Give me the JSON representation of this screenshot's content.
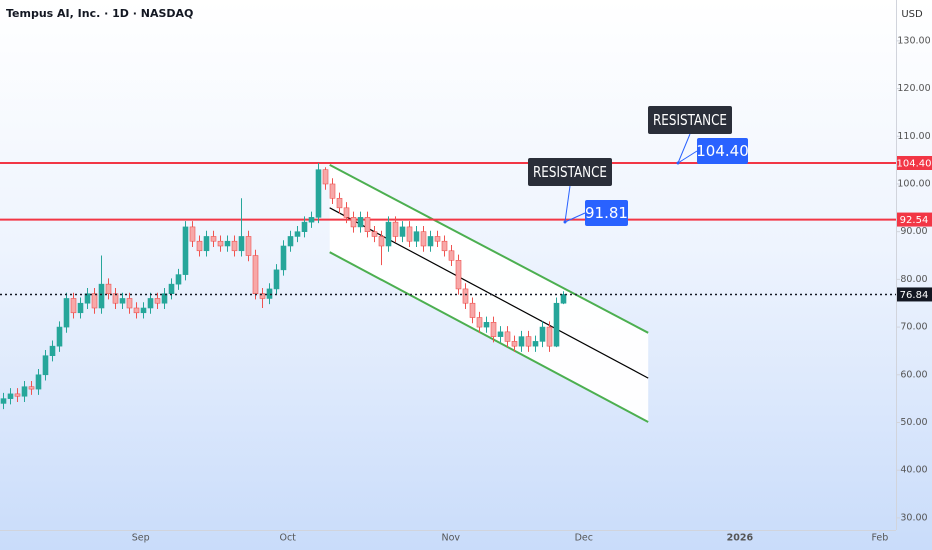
{
  "chart_data": {
    "type": "candlestick",
    "title": "Tempus AI, Inc. · 1D · NASDAQ",
    "currency": "USD",
    "up_color": "#26a69a",
    "down_color": "#ef5350",
    "grid": false,
    "xlim": [
      -0.5,
      127.5
    ],
    "xticks": [
      {
        "value": 19.6,
        "label": "Sep"
      },
      {
        "value": 40.6,
        "label": "Oct"
      },
      {
        "value": 63.9,
        "label": "Nov"
      },
      {
        "value": 82.9,
        "label": "Dec"
      },
      {
        "value": 105.2,
        "label": "2026"
      },
      {
        "value": 125.2,
        "label": "Feb"
      }
    ],
    "ylim": [
      27.46,
      138.57
    ],
    "yticks": [
      {
        "value": 30,
        "label": "30.00"
      },
      {
        "value": 40,
        "label": "40.00"
      },
      {
        "value": 50,
        "label": "50.00"
      },
      {
        "value": 60,
        "label": "60.00"
      },
      {
        "value": 70,
        "label": "70.00"
      },
      {
        "value": 80,
        "label": "80.00"
      },
      {
        "value": 90,
        "label": "90.00"
      },
      {
        "value": 100,
        "label": "100.00"
      },
      {
        "value": 110,
        "label": "110.00"
      },
      {
        "value": 120,
        "label": "120.00"
      },
      {
        "value": 130,
        "label": "130.00"
      }
    ],
    "open": [
      54,
      55,
      56,
      55.5,
      57.5,
      57,
      60,
      64,
      66,
      70,
      76,
      73,
      75,
      77,
      74,
      79,
      77,
      75,
      76,
      74,
      73,
      74,
      76,
      75,
      77,
      79,
      81,
      91,
      88,
      86,
      89,
      88,
      87,
      88,
      86,
      89,
      85,
      77,
      76,
      78,
      82,
      87,
      89,
      90,
      92,
      93,
      103,
      100,
      97,
      95,
      93,
      91,
      93,
      90,
      89,
      87,
      92,
      89,
      91,
      88,
      90,
      87,
      89,
      88,
      86,
      84,
      78,
      75,
      72,
      70,
      71,
      68,
      69,
      67,
      66,
      68,
      66,
      67,
      70,
      66,
      75
    ],
    "high": [
      56.2,
      57.2,
      57.2,
      58.7,
      58.7,
      61.2,
      65.2,
      67.2,
      71.2,
      77.2,
      77.2,
      76.2,
      78.2,
      78.2,
      85,
      80.2,
      78.2,
      77.2,
      77.2,
      75.2,
      75.2,
      77.2,
      77.2,
      78.2,
      80.2,
      82.2,
      92.2,
      92.2,
      89.2,
      90.2,
      90.2,
      89.2,
      89.2,
      89.2,
      97,
      90.2,
      86.2,
      78.2,
      79.2,
      83.2,
      88.2,
      90.2,
      91.2,
      93.2,
      94.2,
      104.4,
      103.5,
      101.2,
      98.2,
      96.2,
      94.2,
      94.2,
      94.2,
      91.2,
      90.2,
      93.2,
      93.2,
      92.2,
      92.2,
      91.2,
      91.2,
      90.2,
      90.2,
      89.2,
      87.2,
      85.2,
      79.2,
      76.2,
      73.2,
      72.2,
      72.2,
      70.2,
      70.2,
      68.2,
      69.2,
      69.2,
      68.2,
      71.2,
      71.2,
      76.2,
      77.5
    ],
    "low": [
      52.8,
      53.8,
      54.3,
      54.3,
      55.8,
      55.8,
      58.8,
      62.8,
      64.8,
      68.8,
      71.8,
      71.8,
      73.8,
      72.8,
      72.8,
      75.8,
      73.8,
      73.8,
      72.8,
      71.8,
      71.8,
      72.8,
      73.8,
      73.8,
      75.8,
      77.8,
      79.8,
      86.8,
      84.8,
      84.8,
      86.8,
      85.8,
      85.8,
      84.8,
      84.8,
      83.8,
      75.8,
      74,
      74.8,
      76.8,
      80.8,
      85.8,
      87.8,
      88.8,
      90.8,
      91.8,
      98.8,
      95.8,
      93.8,
      91.8,
      89.8,
      89.8,
      88.8,
      87.8,
      83,
      85.8,
      87.8,
      87.8,
      86.8,
      86.8,
      85.8,
      85.8,
      86.8,
      84.8,
      82.8,
      76.8,
      73.8,
      70.8,
      68.8,
      68.8,
      66.8,
      66.8,
      65.8,
      64.8,
      64.8,
      64.8,
      64.8,
      65.8,
      64.8,
      65.8,
      74.8
    ],
    "close": [
      55,
      56,
      55.5,
      57.5,
      57,
      60,
      64,
      66,
      70,
      76,
      73,
      75,
      77,
      74,
      79,
      77,
      75,
      76,
      74,
      73,
      74,
      76,
      75,
      77,
      79,
      81,
      91,
      88,
      86,
      89,
      88,
      87,
      88,
      86,
      89,
      85,
      77,
      76,
      78,
      82,
      87,
      89,
      90,
      92,
      93,
      103,
      100,
      97,
      95,
      93,
      91,
      93,
      90,
      89,
      87,
      92,
      89,
      91,
      88,
      90,
      87,
      89,
      88,
      86,
      84,
      78,
      75,
      72,
      70,
      71,
      68,
      69,
      67,
      66,
      68,
      66,
      67,
      70,
      66,
      75,
      76.84
    ],
    "levels": [
      {
        "value": 104.4,
        "label": "104.40",
        "color": "#f23645"
      },
      {
        "value": 92.54,
        "label": "92.54",
        "color": "#f23645"
      }
    ],
    "last_price": {
      "value": 76.84,
      "label": "76.84"
    },
    "channel": {
      "x": [
        46.6,
        92.1
      ],
      "upper": [
        104,
        68.8
      ],
      "middle": [
        95,
        59.3
      ],
      "lower": [
        85.7,
        50.1
      ],
      "color": "#4caf50"
    },
    "annotations": [
      {
        "text": "RESISTANCE",
        "price_label": "91.81"
      },
      {
        "text": "RESISTANCE",
        "price_label": "104.40"
      }
    ]
  }
}
